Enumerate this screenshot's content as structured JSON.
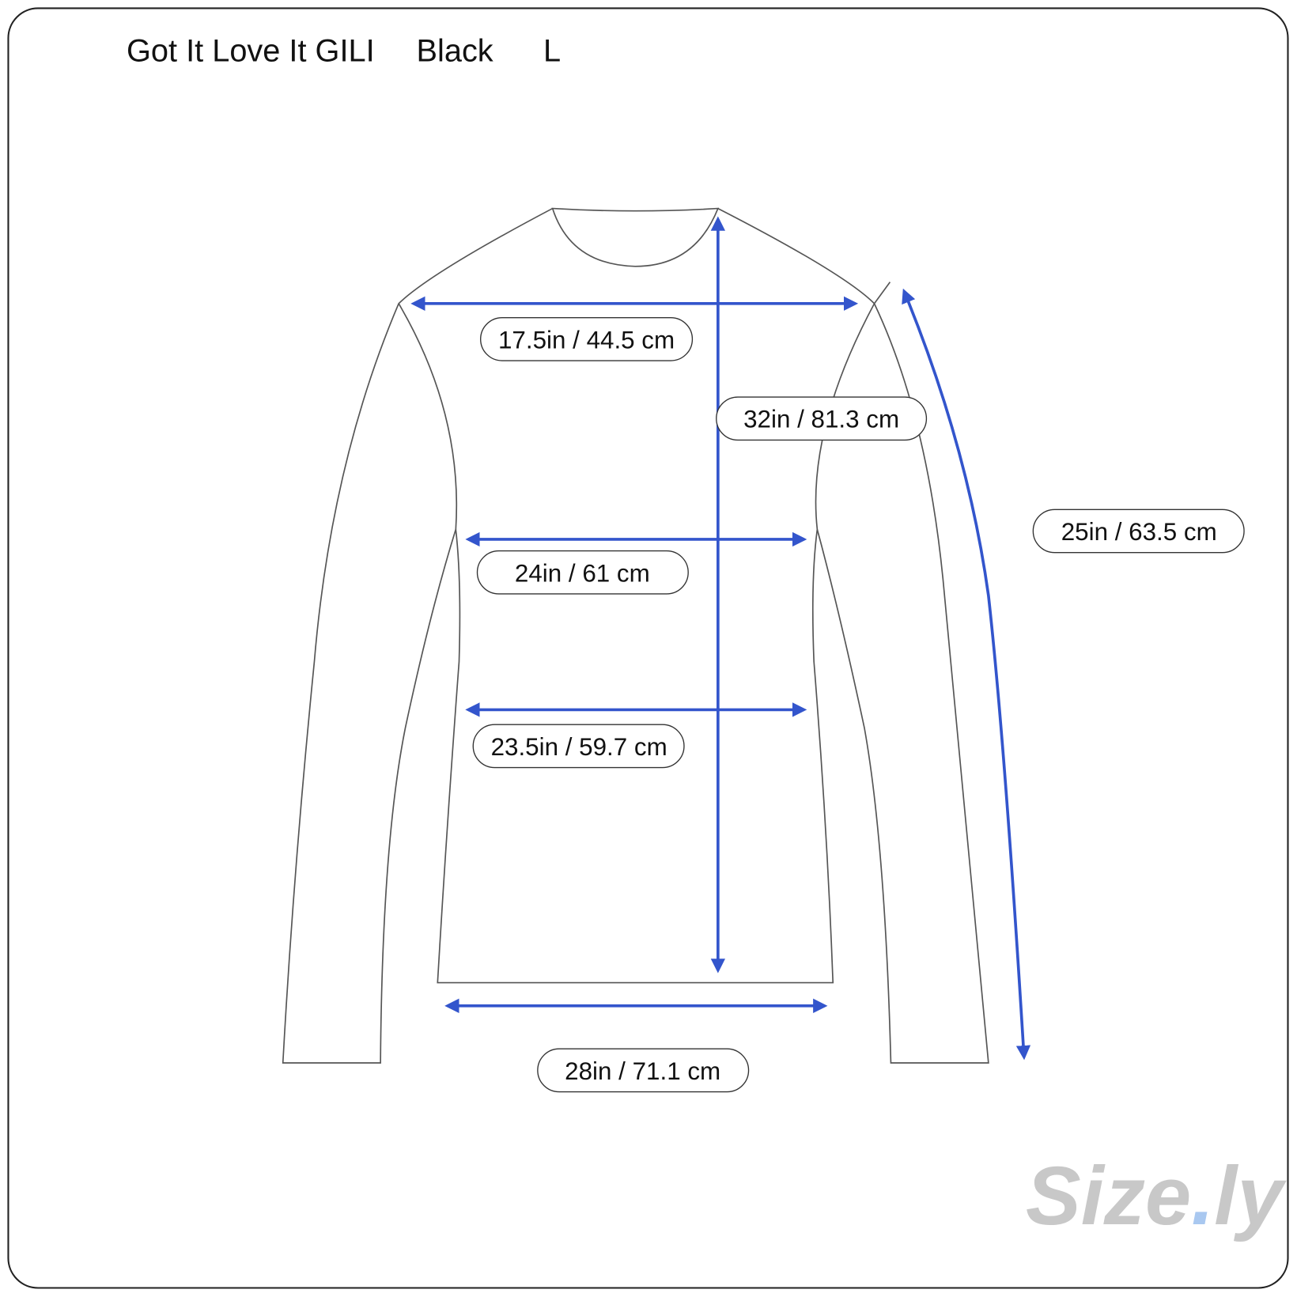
{
  "header": {
    "brand": "Got It Love It GILI",
    "color": "Black",
    "size": "L"
  },
  "measurements": {
    "shoulder": "17.5in / 44.5 cm",
    "length": "32in / 81.3 cm",
    "sleeve": "25in / 63.5 cm",
    "chest": "24in / 61 cm",
    "waist": "23.5in / 59.7 cm",
    "hem": "28in / 71.1 cm"
  },
  "watermark": {
    "text": "Size.ly",
    "color": "#c8c8c8",
    "dot_color": "#a9c8f0"
  },
  "colors": {
    "arrow": "#3355cc",
    "outline": "#555555"
  }
}
